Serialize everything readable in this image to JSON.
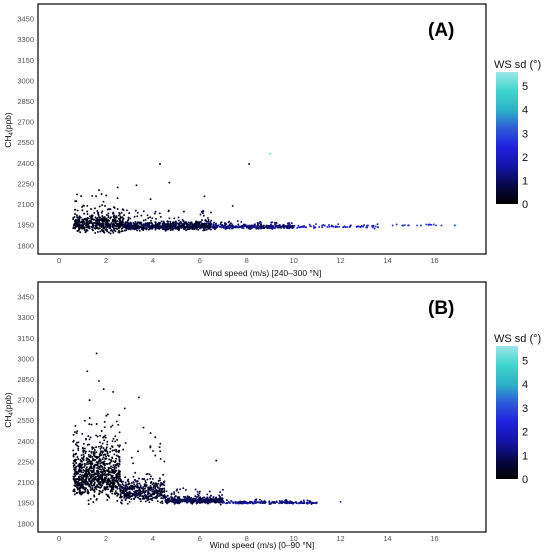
{
  "chart_data": [
    {
      "type": "scatter",
      "panel_label": "(A)",
      "xlabel": "Wind speed (m/s) [240–300 °N]",
      "ylabel_main": "CH",
      "ylabel_sub": "4",
      "ylabel_tail": "(ppb)",
      "xlim": [
        -0.9,
        18.2
      ],
      "ylim": [
        1740,
        3560
      ],
      "x_ticks": [
        "0",
        "2",
        "4",
        "6",
        "8",
        "10",
        "12",
        "14",
        "16"
      ],
      "y_ticks": [
        "1800",
        "1950",
        "2100",
        "2250",
        "2400",
        "2550",
        "2700",
        "2850",
        "3000",
        "3150",
        "3300",
        "3450"
      ],
      "grid": false,
      "color_by": "WS sd (°)",
      "clusters": [
        {
          "x_range": [
            0.6,
            2.8
          ],
          "y_center": 1935,
          "y_spread": 55,
          "tail_max": 2180,
          "count": 520,
          "sd_range": [
            0.0,
            0.6
          ]
        },
        {
          "x_range": [
            2.8,
            6.5
          ],
          "y_center": 1930,
          "y_spread": 22,
          "tail_max": 2060,
          "count": 700,
          "sd_range": [
            0.2,
            1.0
          ]
        },
        {
          "x_range": [
            6.5,
            10.0
          ],
          "y_center": 1932,
          "y_spread": 12,
          "tail_max": 1980,
          "count": 320,
          "sd_range": [
            0.6,
            1.8
          ]
        },
        {
          "x_range": [
            10.0,
            13.6
          ],
          "y_center": 1935,
          "y_spread": 8,
          "tail_max": 1960,
          "count": 70,
          "sd_range": [
            1.4,
            2.6
          ]
        },
        {
          "x_range": [
            14.0,
            17.0
          ],
          "y_center": 1948,
          "y_spread": 5,
          "tail_max": 1955,
          "count": 18,
          "sd_range": [
            2.0,
            3.2
          ]
        }
      ],
      "points": [
        {
          "x": 4.3,
          "y": 2395,
          "sd": 0.3
        },
        {
          "x": 8.1,
          "y": 2395,
          "sd": 0.4
        },
        {
          "x": 9.0,
          "y": 2470,
          "sd": 5.0
        },
        {
          "x": 4.7,
          "y": 2260,
          "sd": 0.2
        },
        {
          "x": 3.3,
          "y": 2240,
          "sd": 0.1
        },
        {
          "x": 2.5,
          "y": 2225,
          "sd": 0.1
        },
        {
          "x": 6.2,
          "y": 2160,
          "sd": 0.4
        },
        {
          "x": 1.7,
          "y": 2205,
          "sd": 0.1
        },
        {
          "x": 7.4,
          "y": 2090,
          "sd": 0.6
        },
        {
          "x": 1.2,
          "y": 2090,
          "sd": 0.1
        },
        {
          "x": 3.9,
          "y": 2140,
          "sd": 0.3
        },
        {
          "x": 13.5,
          "y": 1940,
          "sd": 2.9
        },
        {
          "x": 16.9,
          "y": 1948,
          "sd": 3.8
        }
      ]
    },
    {
      "type": "scatter",
      "panel_label": "(B)",
      "xlabel": "Wind speed (m/s) [0–90 °N]",
      "ylabel_main": "CH",
      "ylabel_sub": "4",
      "ylabel_tail": "(ppb)",
      "xlim": [
        -0.9,
        18.2
      ],
      "ylim": [
        1740,
        3560
      ],
      "x_ticks": [
        "0",
        "2",
        "4",
        "6",
        "8",
        "10",
        "12",
        "14",
        "16"
      ],
      "y_ticks": [
        "1800",
        "1950",
        "2100",
        "2250",
        "2400",
        "2550",
        "2700",
        "2850",
        "3000",
        "3150",
        "3300",
        "3450"
      ],
      "grid": false,
      "color_by": "WS sd (°)",
      "clusters": [
        {
          "x_range": [
            0.6,
            2.6
          ],
          "y_center": 2080,
          "y_spread": 140,
          "tail_max": 2600,
          "count": 900,
          "sd_range": [
            0.0,
            0.5
          ]
        },
        {
          "x_range": [
            2.6,
            4.5
          ],
          "y_center": 2000,
          "y_spread": 60,
          "tail_max": 2400,
          "count": 450,
          "sd_range": [
            0.1,
            0.8
          ]
        },
        {
          "x_range": [
            4.5,
            7.0
          ],
          "y_center": 1960,
          "y_spread": 18,
          "tail_max": 2060,
          "count": 380,
          "sd_range": [
            0.4,
            1.2
          ]
        },
        {
          "x_range": [
            7.0,
            11.0
          ],
          "y_center": 1950,
          "y_spread": 8,
          "tail_max": 1980,
          "count": 170,
          "sd_range": [
            0.8,
            2.0
          ]
        }
      ],
      "points": [
        {
          "x": 1.6,
          "y": 3040,
          "sd": 0.1
        },
        {
          "x": 1.2,
          "y": 2910,
          "sd": 0.1
        },
        {
          "x": 1.7,
          "y": 2840,
          "sd": 0.1
        },
        {
          "x": 1.9,
          "y": 2780,
          "sd": 0.1
        },
        {
          "x": 3.4,
          "y": 2720,
          "sd": 0.3
        },
        {
          "x": 2.3,
          "y": 2760,
          "sd": 0.1
        },
        {
          "x": 1.3,
          "y": 2700,
          "sd": 0.1
        },
        {
          "x": 2.8,
          "y": 2640,
          "sd": 0.2
        },
        {
          "x": 3.9,
          "y": 2460,
          "sd": 0.3
        },
        {
          "x": 4.1,
          "y": 2430,
          "sd": 0.3
        },
        {
          "x": 6.7,
          "y": 2260,
          "sd": 0.5
        },
        {
          "x": 3.6,
          "y": 2500,
          "sd": 0.2
        },
        {
          "x": 12.0,
          "y": 1960,
          "sd": 2.2
        }
      ]
    }
  ],
  "legend": {
    "title": "WS sd (°)",
    "ticks": [
      "0",
      "1",
      "2",
      "3",
      "4",
      "5"
    ],
    "range": [
      0,
      5.6
    ],
    "colors": [
      "#000000",
      "#07074a",
      "#1414a8",
      "#2020e0",
      "#2d5ad8",
      "#2db2c8",
      "#3fd6cc",
      "#9ee6ea"
    ]
  }
}
